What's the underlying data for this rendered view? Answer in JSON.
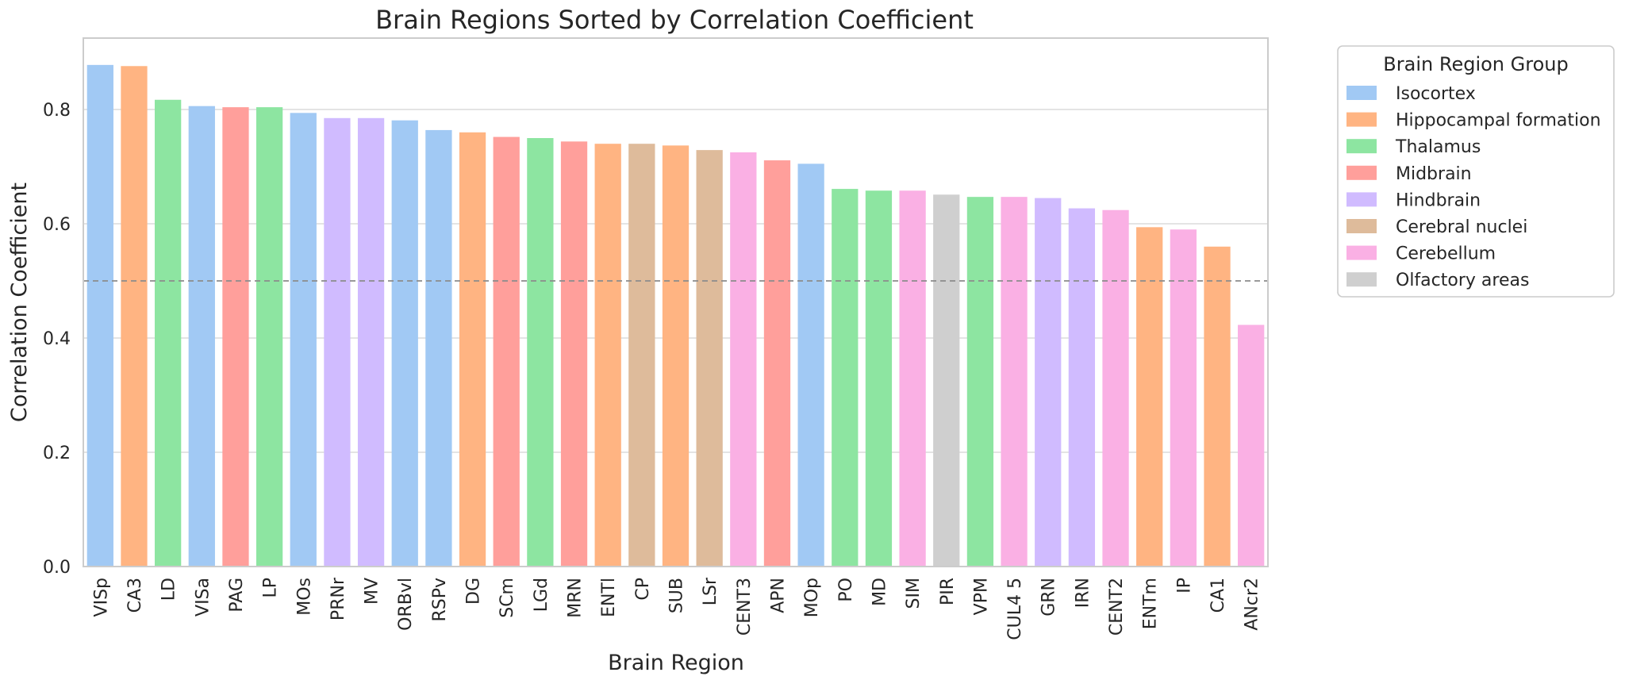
{
  "chart_data": {
    "type": "bar",
    "title": "Brain Regions Sorted by Correlation Coefficient",
    "xlabel": "Brain Region",
    "ylabel": "Correlation Coefficient",
    "ylim": [
      0,
      0.925
    ],
    "yticks": [
      0.0,
      0.2,
      0.4,
      0.6,
      0.8
    ],
    "ytick_labels": [
      "0.0",
      "0.2",
      "0.4",
      "0.6",
      "0.8"
    ],
    "grid": "y",
    "reference_line": 0.5,
    "legend_position": "outside-top-right",
    "legend": {
      "title": "Brain Region Group",
      "entries": [
        {
          "name": "Isocortex",
          "color": "#a1c9f4"
        },
        {
          "name": "Hippocampal formation",
          "color": "#ffb482"
        },
        {
          "name": "Thalamus",
          "color": "#8de5a1"
        },
        {
          "name": "Midbrain",
          "color": "#ff9f9b"
        },
        {
          "name": "Hindbrain",
          "color": "#d0bbff"
        },
        {
          "name": "Cerebral nuclei",
          "color": "#debb9b"
        },
        {
          "name": "Cerebellum",
          "color": "#fab0e4"
        },
        {
          "name": "Olfactory areas",
          "color": "#cfcfcf"
        }
      ]
    },
    "bars": [
      {
        "region": "VISp",
        "value": 0.878,
        "group": "Isocortex"
      },
      {
        "region": "CA3",
        "value": 0.876,
        "group": "Hippocampal formation"
      },
      {
        "region": "LD",
        "value": 0.817,
        "group": "Thalamus"
      },
      {
        "region": "VISa",
        "value": 0.806,
        "group": "Isocortex"
      },
      {
        "region": "PAG",
        "value": 0.804,
        "group": "Midbrain"
      },
      {
        "region": "LP",
        "value": 0.804,
        "group": "Thalamus"
      },
      {
        "region": "MOs",
        "value": 0.794,
        "group": "Isocortex"
      },
      {
        "region": "PRNr",
        "value": 0.785,
        "group": "Hindbrain"
      },
      {
        "region": "MV",
        "value": 0.785,
        "group": "Hindbrain"
      },
      {
        "region": "ORBvl",
        "value": 0.781,
        "group": "Isocortex"
      },
      {
        "region": "RSPv",
        "value": 0.764,
        "group": "Isocortex"
      },
      {
        "region": "DG",
        "value": 0.76,
        "group": "Hippocampal formation"
      },
      {
        "region": "SCm",
        "value": 0.752,
        "group": "Midbrain"
      },
      {
        "region": "LGd",
        "value": 0.75,
        "group": "Thalamus"
      },
      {
        "region": "MRN",
        "value": 0.744,
        "group": "Midbrain"
      },
      {
        "region": "ENTl",
        "value": 0.74,
        "group": "Hippocampal formation"
      },
      {
        "region": "CP",
        "value": 0.74,
        "group": "Cerebral nuclei"
      },
      {
        "region": "SUB",
        "value": 0.737,
        "group": "Hippocampal formation"
      },
      {
        "region": "LSr",
        "value": 0.729,
        "group": "Cerebral nuclei"
      },
      {
        "region": "CENT3",
        "value": 0.725,
        "group": "Cerebellum"
      },
      {
        "region": "APN",
        "value": 0.711,
        "group": "Midbrain"
      },
      {
        "region": "MOp",
        "value": 0.705,
        "group": "Isocortex"
      },
      {
        "region": "PO",
        "value": 0.661,
        "group": "Thalamus"
      },
      {
        "region": "MD",
        "value": 0.658,
        "group": "Thalamus"
      },
      {
        "region": "SIM",
        "value": 0.658,
        "group": "Cerebellum"
      },
      {
        "region": "PIR",
        "value": 0.651,
        "group": "Olfactory areas"
      },
      {
        "region": "VPM",
        "value": 0.647,
        "group": "Thalamus"
      },
      {
        "region": "CUL4 5",
        "value": 0.647,
        "group": "Cerebellum"
      },
      {
        "region": "GRN",
        "value": 0.645,
        "group": "Hindbrain"
      },
      {
        "region": "IRN",
        "value": 0.627,
        "group": "Hindbrain"
      },
      {
        "region": "CENT2",
        "value": 0.624,
        "group": "Cerebellum"
      },
      {
        "region": "ENTm",
        "value": 0.594,
        "group": "Hippocampal formation"
      },
      {
        "region": "IP",
        "value": 0.59,
        "group": "Cerebellum"
      },
      {
        "region": "CA1",
        "value": 0.56,
        "group": "Hippocampal formation"
      },
      {
        "region": "ANcr2",
        "value": 0.423,
        "group": "Cerebellum"
      }
    ]
  }
}
